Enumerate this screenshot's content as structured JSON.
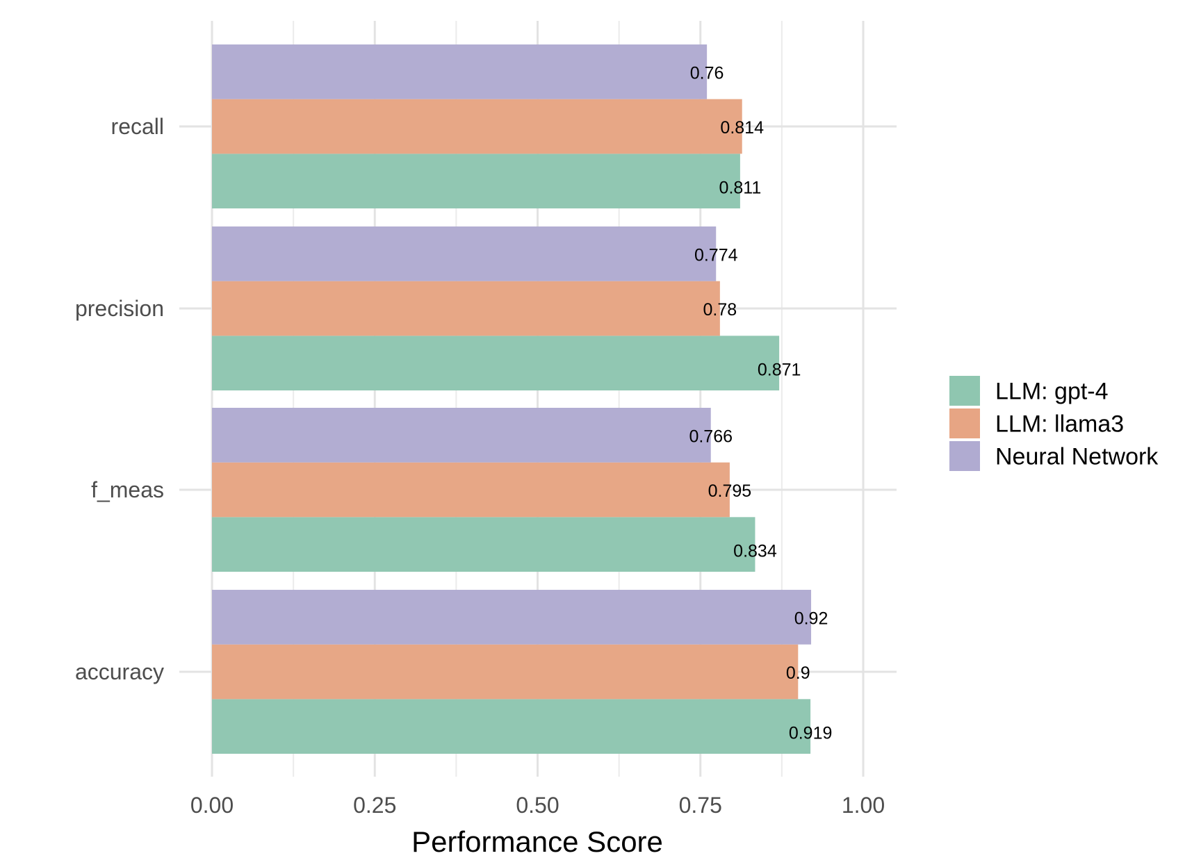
{
  "chart_data": {
    "type": "bar",
    "orientation": "horizontal",
    "xlabel": "Performance Score",
    "ylabel": "",
    "xlim": [
      0,
      1.05
    ],
    "x_ticks": [
      "0.00",
      "0.25",
      "0.50",
      "0.75",
      "1.00"
    ],
    "x_tick_values": [
      0,
      0.25,
      0.5,
      0.75,
      1.0
    ],
    "categories": [
      "recall",
      "precision",
      "f_meas",
      "accuracy"
    ],
    "series": [
      {
        "name": "LLM: gpt-4",
        "color": "#8fc6b0",
        "values": [
          0.811,
          0.871,
          0.834,
          0.919
        ],
        "labels": [
          "0.811",
          "0.871",
          "0.834",
          "0.919"
        ]
      },
      {
        "name": "LLM: llama3",
        "color": "#e7a584",
        "values": [
          0.814,
          0.78,
          0.795,
          0.9
        ],
        "labels": [
          "0.814",
          "0.78",
          "0.795",
          "0.9"
        ]
      },
      {
        "name": "Neural Network",
        "color": "#b0abd1",
        "values": [
          0.76,
          0.774,
          0.766,
          0.92
        ],
        "labels": [
          "0.76",
          "0.774",
          "0.766",
          "0.92"
        ]
      }
    ],
    "grid": true,
    "legend_position": "right"
  }
}
